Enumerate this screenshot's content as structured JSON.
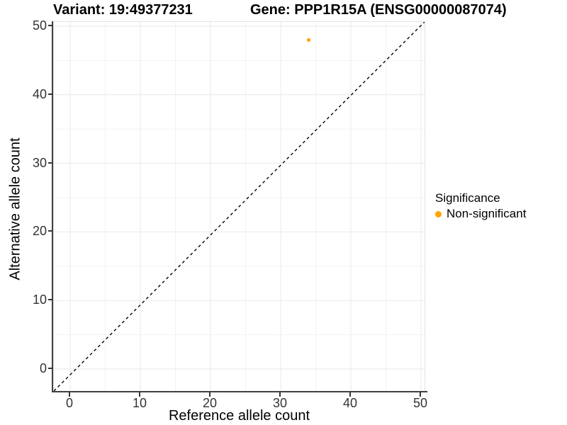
{
  "chart_data": {
    "type": "scatter",
    "title_left": "Variant: 19:49377231",
    "title_right": "Gene: PPP1R15A (ENSG00000087074)",
    "xlabel": "Reference allele count",
    "ylabel": "Alternative allele count",
    "x_ticks": [
      0,
      10,
      20,
      30,
      40,
      50
    ],
    "y_ticks": [
      0,
      10,
      20,
      30,
      40,
      50
    ],
    "minor_tick_step": 5,
    "xlim": [
      -2.5,
      50.7
    ],
    "ylim": [
      -3.4,
      50.6
    ],
    "grid": "major+minor",
    "points": [
      {
        "x": 34,
        "y": 48,
        "series": "Non-significant"
      }
    ],
    "reference_line": {
      "slope": 1,
      "intercept": 0,
      "style": "dashed"
    },
    "legend": {
      "title": "Significance",
      "position": "right",
      "items": [
        {
          "label": "Non-significant",
          "color": "#FFA500"
        }
      ]
    },
    "colors": {
      "point": "#FFA500",
      "grid_major": "#e9e9e9",
      "grid_minor": "#f3f3f3",
      "axis_line": "#404040",
      "tick_mark": "#333333",
      "tick_text": "#333333",
      "reference_line": "#000000",
      "panel_border": "#e4e4e4",
      "text": "#000000"
    }
  }
}
